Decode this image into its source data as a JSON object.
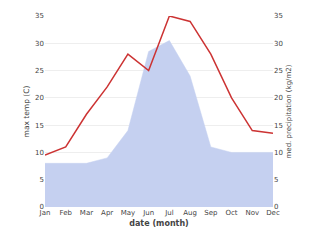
{
  "chart_data": {
    "type": "line",
    "categories": [
      "Jan",
      "Feb",
      "Mar",
      "Apr",
      "May",
      "Jun",
      "Jul",
      "Aug",
      "Sep",
      "Oct",
      "Nov",
      "Dec"
    ],
    "series": [
      {
        "type": "area",
        "axis": "y2",
        "color": "#c5d0f0",
        "values": [
          8.0,
          8.0,
          8.0,
          9.0,
          14.0,
          28.5,
          30.5,
          24.0,
          11.0,
          10.0,
          10.0,
          10.0
        ]
      },
      {
        "type": "line",
        "color": "#cc3333",
        "values": [
          9.5,
          11.0,
          17.0,
          22.0,
          28.0,
          25.0,
          35.0,
          34.0,
          28.0,
          20.0,
          14.0,
          13.5
        ]
      }
    ],
    "xlabel": "date (month)",
    "ylabel": "max temp (C)",
    "y2label": "med. precipitation (kg/m2)",
    "ylim": [
      0,
      35
    ],
    "yticks": [
      0,
      5,
      10,
      15,
      20,
      25,
      30,
      35
    ],
    "y2lim": [
      0,
      35
    ],
    "y2ticks": [
      0,
      5,
      10,
      15,
      20,
      25,
      30,
      35
    ],
    "grid": true
  }
}
